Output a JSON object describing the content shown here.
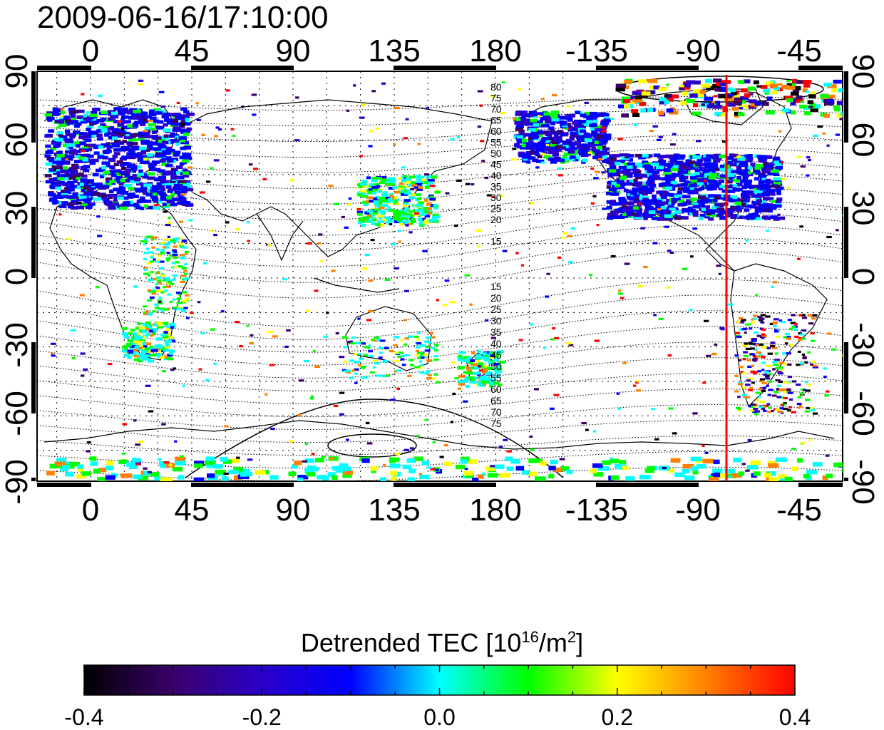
{
  "title": "2009-06-16/17:10:00",
  "x_axis": {
    "ticks": [
      "0",
      "45",
      "90",
      "135",
      "180",
      "-135",
      "-90",
      "-45"
    ]
  },
  "y_axis": {
    "ticks": [
      "90",
      "60",
      "30",
      "0",
      "-30",
      "-60",
      "-90"
    ]
  },
  "contour_labels_north": [
    "80",
    "75",
    "70",
    "65",
    "60",
    "55",
    "50",
    "45",
    "40",
    "35",
    "30",
    "25",
    "20",
    "15"
  ],
  "contour_labels_south": [
    "15",
    "20",
    "25",
    "30",
    "35",
    "40",
    "45",
    "50",
    "55",
    "60",
    "65",
    "70",
    "75"
  ],
  "marker_line": {
    "longitude": -80,
    "color": "#ff0000"
  },
  "colorbar": {
    "title_prefix": "Detrended TEC  [10",
    "title_exp1": "16",
    "title_mid": "/m",
    "title_exp2": "2",
    "title_suffix": "]",
    "ticks": [
      "-0.4",
      "-0.2",
      "0.0",
      "0.2",
      "0.4"
    ],
    "range": [
      -0.4,
      0.4
    ],
    "colors": [
      "#000000",
      "#3a006a",
      "#2a00c8",
      "#0000ff",
      "#00ffff",
      "#00ff00",
      "#ffff00",
      "#ff8000",
      "#ff0000"
    ]
  }
}
